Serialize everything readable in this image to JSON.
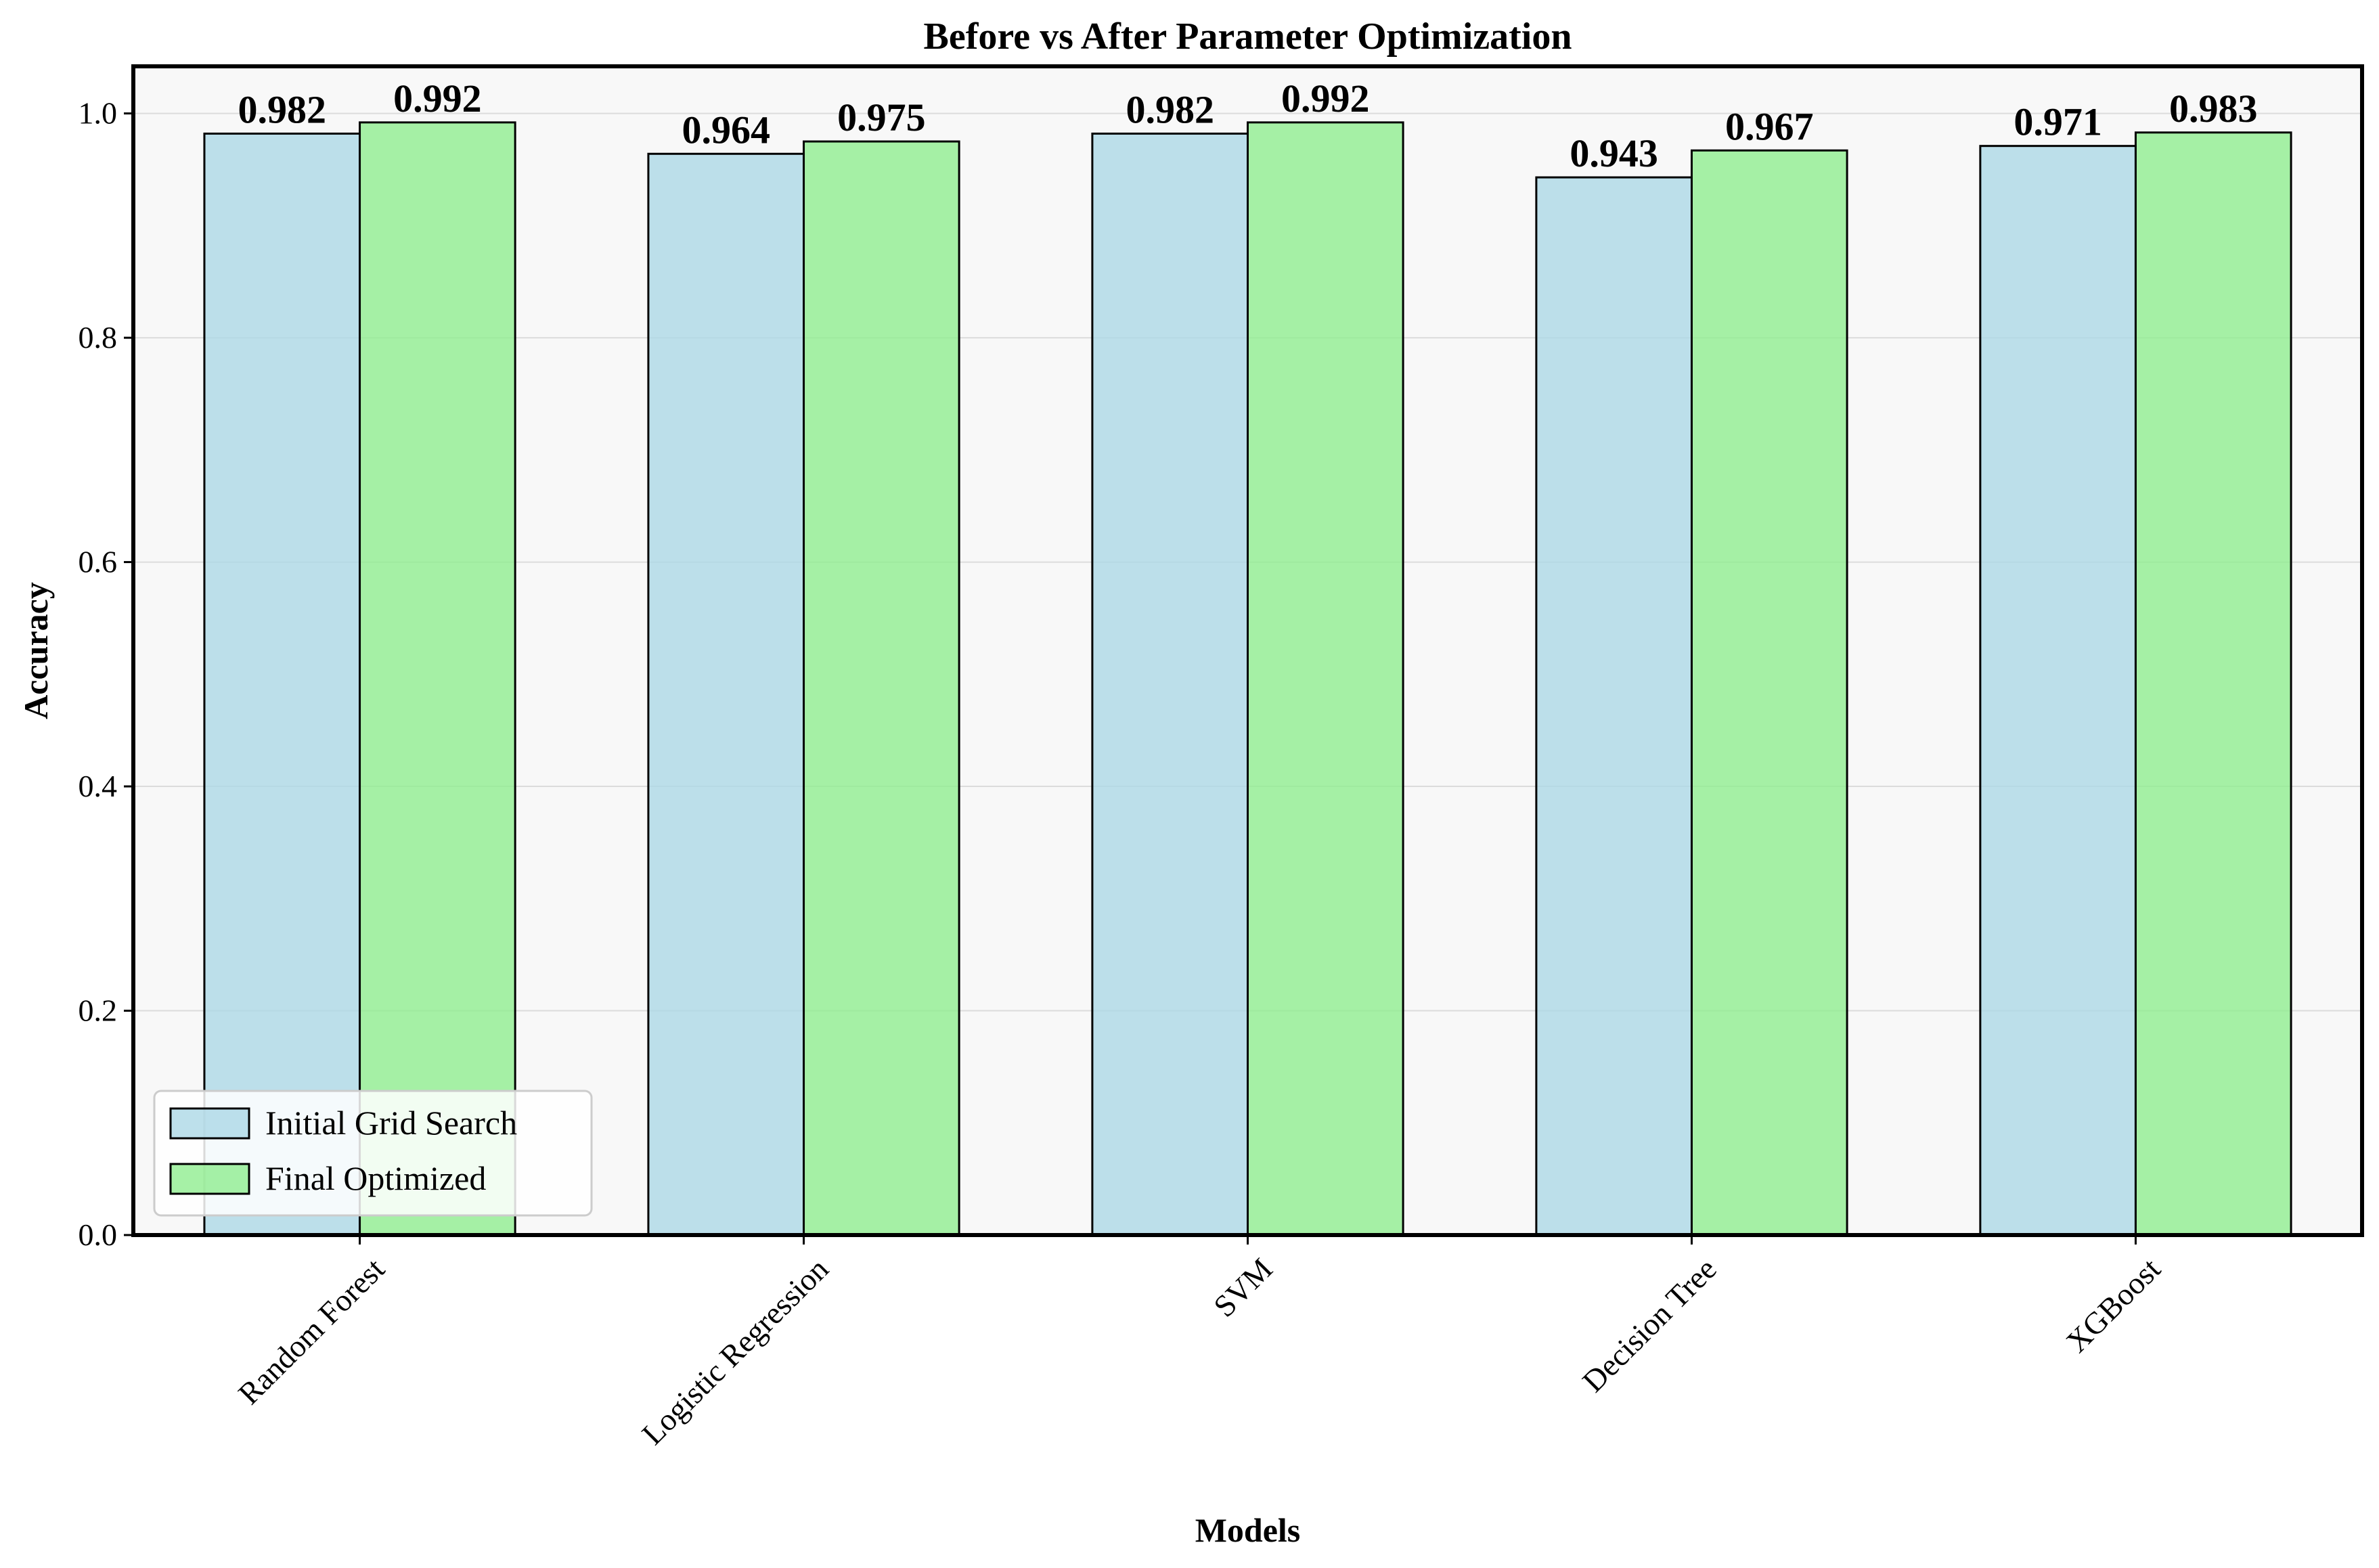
{
  "chart_data": {
    "type": "bar",
    "title": "Before vs After Parameter Optimization",
    "xlabel": "Models",
    "ylabel": "Accuracy",
    "categories": [
      "Random Forest",
      "Logistic Regression",
      "SVM",
      "Decision Tree",
      "XGBoost"
    ],
    "series": [
      {
        "name": "Initial Grid Search",
        "values": [
          0.982,
          0.964,
          0.982,
          0.943,
          0.971
        ],
        "labels": [
          "0.982",
          "0.964",
          "0.982",
          "0.943",
          "0.971"
        ],
        "color": "#add8e6"
      },
      {
        "name": "Final Optimized",
        "values": [
          0.992,
          0.975,
          0.992,
          0.967,
          0.983
        ],
        "labels": [
          "0.992",
          "0.975",
          "0.992",
          "0.967",
          "0.983"
        ],
        "color": "#90ee90"
      }
    ],
    "ylim": [
      0,
      1.042
    ],
    "yticks": [
      0.0,
      0.2,
      0.4,
      0.6,
      0.8,
      1.0
    ],
    "ytick_labels": [
      "0.0",
      "0.2",
      "0.4",
      "0.6",
      "0.8",
      "1.0"
    ],
    "grid": "horizontal",
    "legend_position": "lower-left",
    "background_color": "#f8f8f8"
  }
}
